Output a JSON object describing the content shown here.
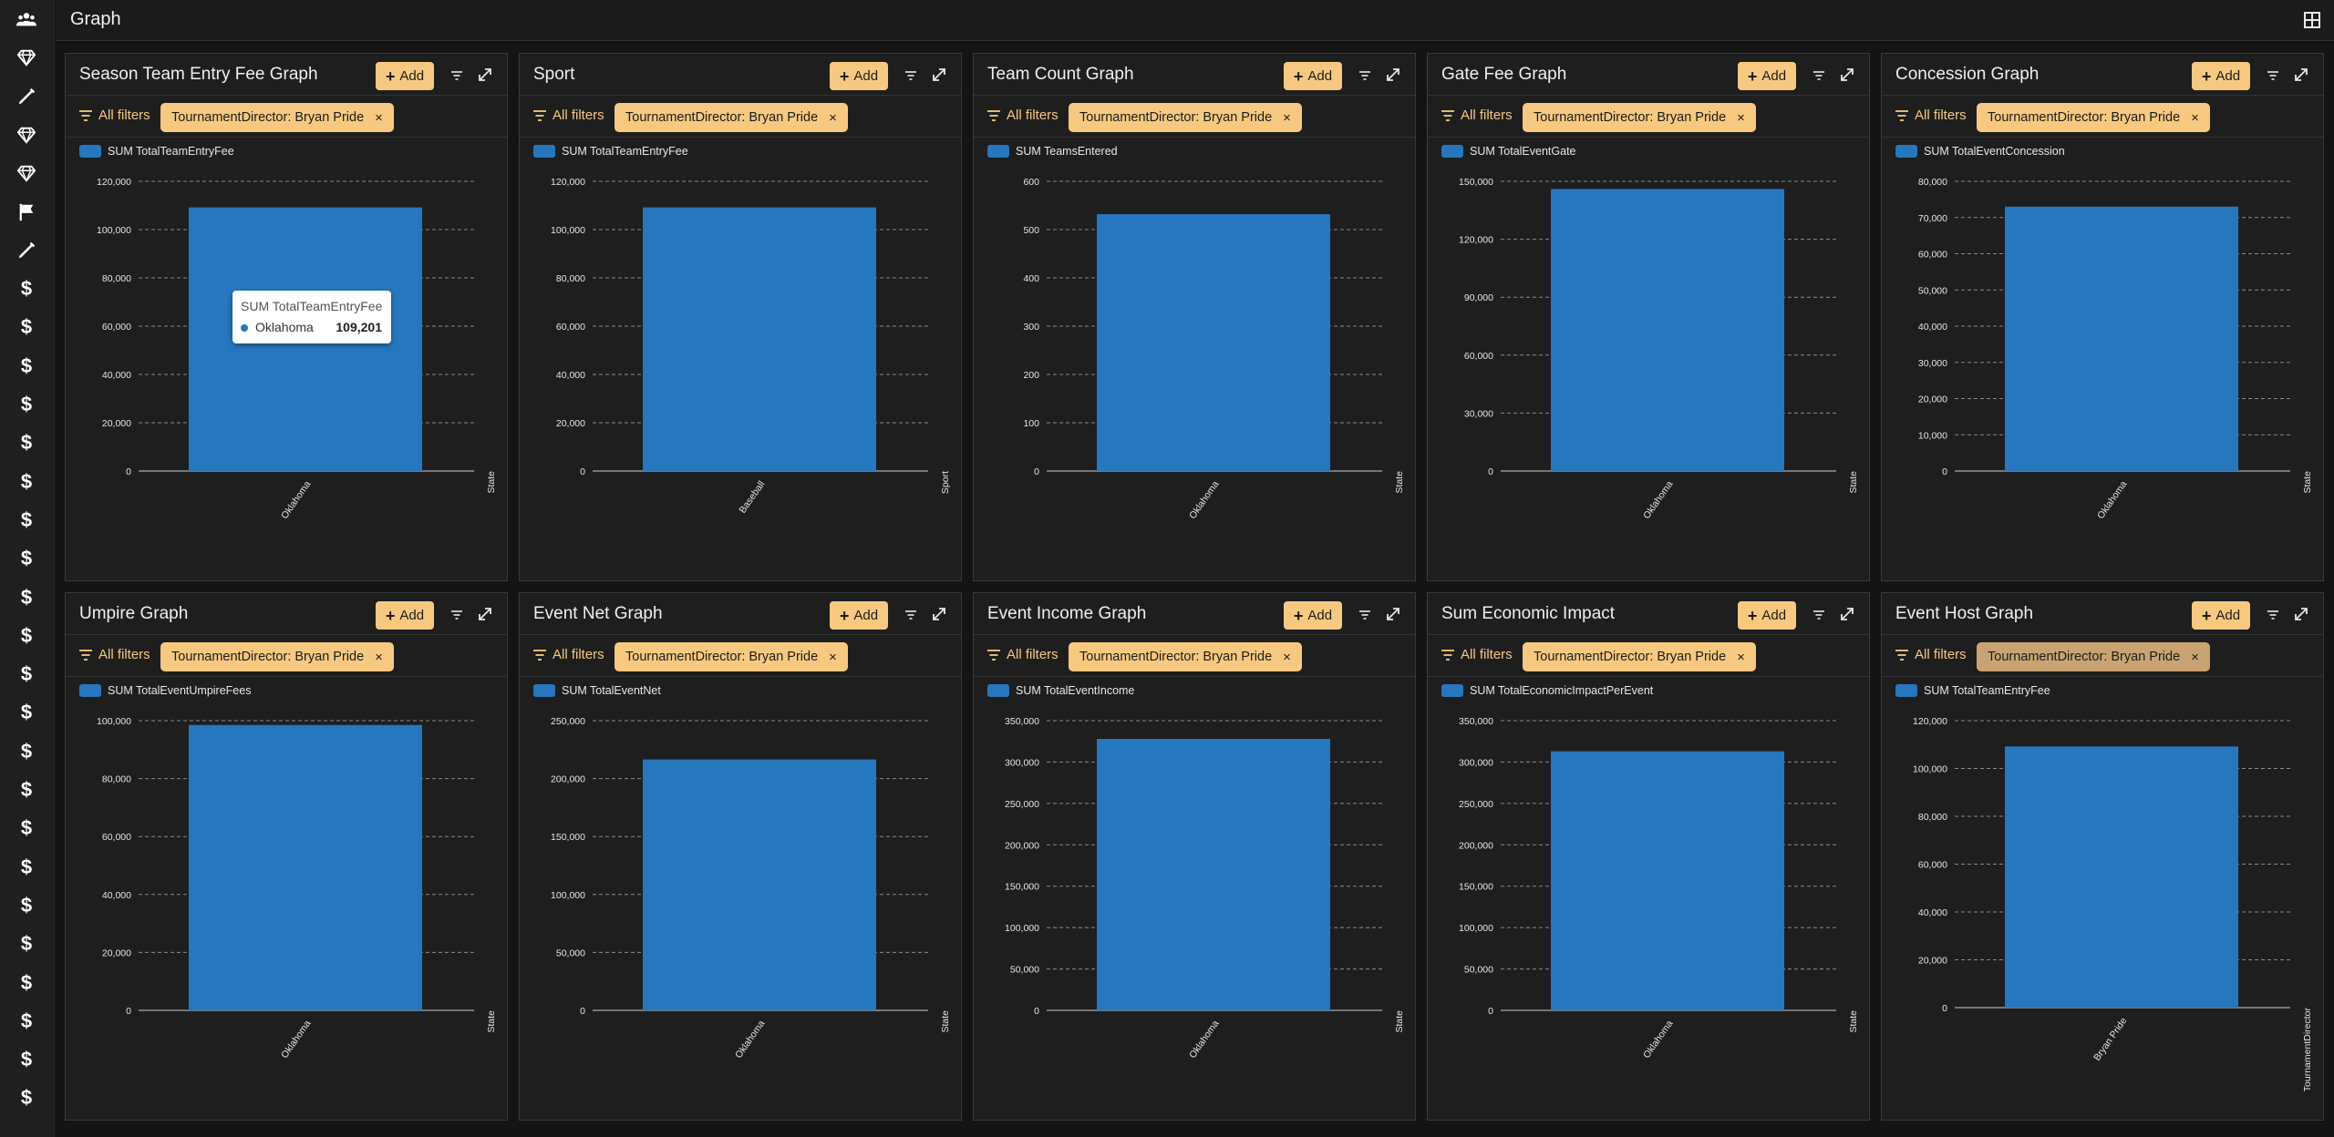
{
  "header": {
    "title": "Graph",
    "layout_icon": "layout-grid-icon"
  },
  "sidebar": {
    "icons": [
      "users-icon",
      "diamond-icon",
      "pen-icon",
      "diamond-icon",
      "diamond-icon",
      "flag-icon",
      "pen-icon",
      "dollar-icon",
      "dollar-icon",
      "dollar-icon",
      "dollar-icon",
      "dollar-icon",
      "dollar-icon",
      "dollar-icon",
      "dollar-icon",
      "dollar-icon",
      "dollar-icon",
      "dollar-icon",
      "dollar-icon",
      "dollar-icon",
      "dollar-icon",
      "dollar-icon",
      "dollar-icon",
      "dollar-icon",
      "dollar-icon",
      "dollar-icon",
      "dollar-icon",
      "dollar-icon",
      "dollar-icon"
    ]
  },
  "common": {
    "add_label": "Add",
    "all_filters_label": "All filters",
    "filter_chip": "TournamentDirector: Bryan Pride",
    "chip_close": "×",
    "bar_color": "#2677be",
    "accent_color": "#f7c980"
  },
  "tooltip": {
    "title": "SUM TotalTeamEntryFee",
    "name": "Oklahoma",
    "value": "109,201"
  },
  "chart_data": [
    {
      "type": "bar",
      "title": "Season Team Entry Fee Graph",
      "legend": "SUM TotalTeamEntryFee",
      "categories": [
        "Oklahoma"
      ],
      "values": [
        109201
      ],
      "xlabel": "State",
      "ylim": [
        0,
        120000
      ],
      "yticks": [
        "0",
        "20,000",
        "40,000",
        "60,000",
        "80,000",
        "100,000",
        "120,000"
      ]
    },
    {
      "type": "bar",
      "title": "Sport",
      "legend": "SUM TotalTeamEntryFee",
      "categories": [
        "Baseball"
      ],
      "values": [
        109201
      ],
      "xlabel": "Sport",
      "ylim": [
        0,
        120000
      ],
      "yticks": [
        "0",
        "20,000",
        "40,000",
        "60,000",
        "80,000",
        "100,000",
        "120,000"
      ]
    },
    {
      "type": "bar",
      "title": "Team Count Graph",
      "legend": "SUM TeamsEntered",
      "categories": [
        "Oklahoma"
      ],
      "values": [
        532
      ],
      "xlabel": "State",
      "ylim": [
        0,
        600
      ],
      "yticks": [
        "0",
        "100",
        "200",
        "300",
        "400",
        "500",
        "600"
      ]
    },
    {
      "type": "bar",
      "title": "Gate Fee Graph",
      "legend": "SUM TotalEventGate",
      "categories": [
        "Oklahoma"
      ],
      "values": [
        146000
      ],
      "xlabel": "State",
      "ylim": [
        0,
        150000
      ],
      "yticks": [
        "0",
        "30,000",
        "60,000",
        "90,000",
        "120,000",
        "150,000"
      ]
    },
    {
      "type": "bar",
      "title": "Concession Graph",
      "legend": "SUM TotalEventConcession",
      "categories": [
        "Oklahoma"
      ],
      "values": [
        73000
      ],
      "xlabel": "State",
      "ylim": [
        0,
        80000
      ],
      "yticks": [
        "0",
        "10,000",
        "20,000",
        "30,000",
        "40,000",
        "50,000",
        "60,000",
        "70,000",
        "80,000"
      ]
    },
    {
      "type": "bar",
      "title": "Umpire Graph",
      "legend": "SUM TotalEventUmpireFees",
      "categories": [
        "Oklahoma"
      ],
      "values": [
        98500
      ],
      "xlabel": "State",
      "ylim": [
        0,
        100000
      ],
      "yticks": [
        "0",
        "20,000",
        "40,000",
        "60,000",
        "80,000",
        "100,000"
      ]
    },
    {
      "type": "bar",
      "title": "Event Net Graph",
      "legend": "SUM TotalEventNet",
      "categories": [
        "Oklahoma"
      ],
      "values": [
        216500
      ],
      "xlabel": "State",
      "ylim": [
        0,
        250000
      ],
      "yticks": [
        "0",
        "50,000",
        "100,000",
        "150,000",
        "200,000",
        "250,000"
      ]
    },
    {
      "type": "bar",
      "title": "Event Income Graph",
      "legend": "SUM TotalEventIncome",
      "categories": [
        "Oklahoma"
      ],
      "values": [
        328000
      ],
      "xlabel": "State",
      "ylim": [
        0,
        350000
      ],
      "yticks": [
        "0",
        "50,000",
        "100,000",
        "150,000",
        "200,000",
        "250,000",
        "300,000",
        "350,000"
      ]
    },
    {
      "type": "bar",
      "title": "Sum Economic Impact",
      "legend": "SUM TotalEconomicImpactPerEvent",
      "categories": [
        "Oklahoma"
      ],
      "values": [
        313000
      ],
      "xlabel": "State",
      "ylim": [
        0,
        350000
      ],
      "yticks": [
        "0",
        "50,000",
        "100,000",
        "150,000",
        "200,000",
        "250,000",
        "300,000",
        "350,000"
      ]
    },
    {
      "type": "bar",
      "title": "Event Host Graph",
      "legend": "SUM TotalTeamEntryFee",
      "categories": [
        "Bryan Pride"
      ],
      "values": [
        109201
      ],
      "xlabel": "TournamentDirector",
      "ylim": [
        0,
        120000
      ],
      "yticks": [
        "0",
        "20,000",
        "40,000",
        "60,000",
        "80,000",
        "100,000",
        "120,000"
      ]
    }
  ]
}
